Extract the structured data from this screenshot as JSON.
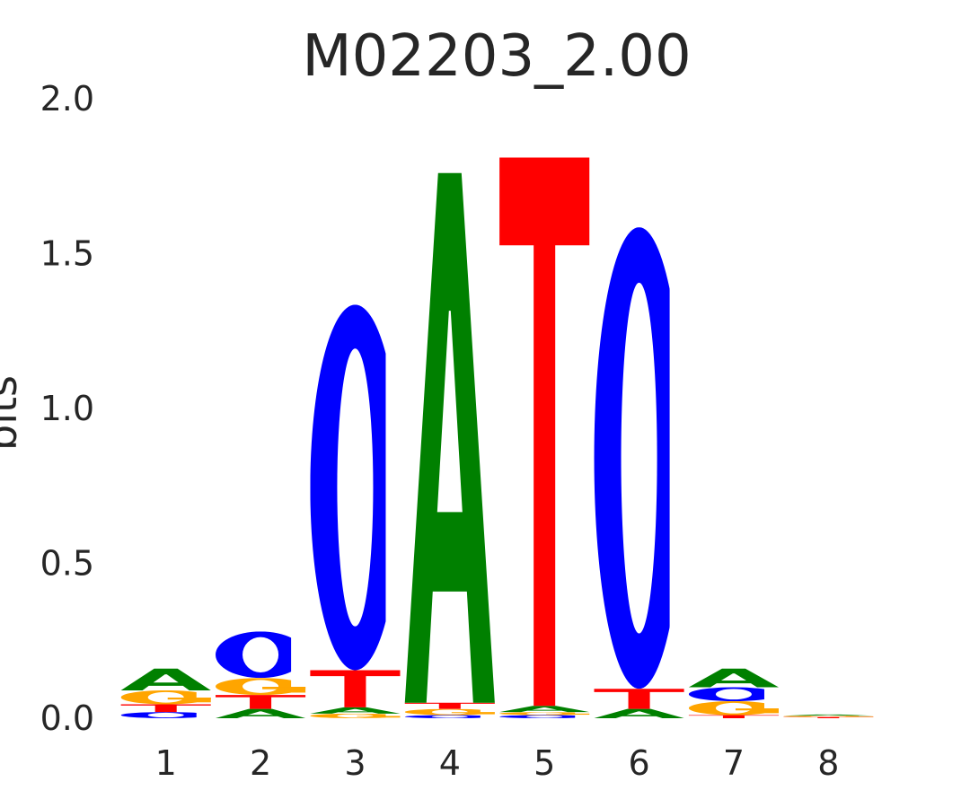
{
  "chart_data": {
    "type": "sequence-logo",
    "title": "M02203_2.00",
    "ylabel": "bits",
    "xlabel": "",
    "ylim": [
      0,
      2.0
    ],
    "y_ticks": [
      "0.0",
      "0.5",
      "1.0",
      "1.5",
      "2.0"
    ],
    "y_tick_values": [
      0,
      0.5,
      1.0,
      1.5,
      2.0
    ],
    "positions": [
      "1",
      "2",
      "3",
      "4",
      "5",
      "6",
      "7",
      "8"
    ],
    "grid": false,
    "legend": "none",
    "colors": {
      "A": "#008000",
      "C": "#0000ff",
      "G": "#ffa500",
      "T": "#ff0000"
    },
    "stacks": [
      [
        {
          "base": "C",
          "bits": 0.02
        },
        {
          "base": "T",
          "bits": 0.025
        },
        {
          "base": "G",
          "bits": 0.045
        },
        {
          "base": "A",
          "bits": 0.07
        }
      ],
      [
        {
          "base": "A",
          "bits": 0.03
        },
        {
          "base": "T",
          "bits": 0.045
        },
        {
          "base": "G",
          "bits": 0.055
        },
        {
          "base": "C",
          "bits": 0.15
        }
      ],
      [
        {
          "base": "G",
          "bits": 0.015
        },
        {
          "base": "A",
          "bits": 0.02
        },
        {
          "base": "T",
          "bits": 0.12
        },
        {
          "base": "C",
          "bits": 1.18
        }
      ],
      [
        {
          "base": "C",
          "bits": 0.01
        },
        {
          "base": "G",
          "bits": 0.02
        },
        {
          "base": "T",
          "bits": 0.02
        },
        {
          "base": "A",
          "bits": 1.71
        }
      ],
      [
        {
          "base": "C",
          "bits": 0.01
        },
        {
          "base": "G",
          "bits": 0.01
        },
        {
          "base": "A",
          "bits": 0.02
        },
        {
          "base": "T",
          "bits": 1.77
        }
      ],
      [
        {
          "base": "A",
          "bits": 0.03
        },
        {
          "base": "T",
          "bits": 0.065
        },
        {
          "base": "C",
          "bits": 1.49
        }
      ],
      [
        {
          "base": "T",
          "bits": 0.01
        },
        {
          "base": "G",
          "bits": 0.045
        },
        {
          "base": "C",
          "bits": 0.045
        },
        {
          "base": "A",
          "bits": 0.06
        }
      ],
      [
        {
          "base": "T",
          "bits": 0.004
        },
        {
          "base": "G",
          "bits": 0.004
        },
        {
          "base": "A",
          "bits": 0.004
        }
      ]
    ]
  }
}
